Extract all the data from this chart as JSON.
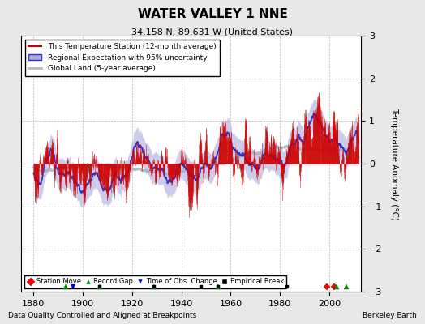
{
  "title": "WATER VALLEY 1 NNE",
  "subtitle": "34.158 N, 89.631 W (United States)",
  "ylabel": "Temperature Anomaly (°C)",
  "xlabel_bottom": "Data Quality Controlled and Aligned at Breakpoints",
  "credit": "Berkeley Earth",
  "xmin": 1875,
  "xmax": 2013,
  "ymin": -3,
  "ymax": 3,
  "xticks": [
    1880,
    1900,
    1920,
    1940,
    1960,
    1980,
    2000
  ],
  "yticks": [
    -3,
    -2,
    -1,
    0,
    1,
    2,
    3
  ],
  "bg_color": "#e8e8e8",
  "plot_bg_color": "#ffffff",
  "station_color": "#cc0000",
  "regional_color": "#3333cc",
  "regional_fill": "#aaaadd",
  "global_color": "#bbbbbb",
  "seed": 12345,
  "station_moves": [
    1999,
    2002
  ],
  "record_gaps": [
    1893,
    1907,
    1929,
    1955,
    2003,
    2007
  ],
  "obs_changes": [
    1896
  ],
  "emp_breaks": [
    1907,
    1929,
    1948,
    1955,
    1983
  ]
}
